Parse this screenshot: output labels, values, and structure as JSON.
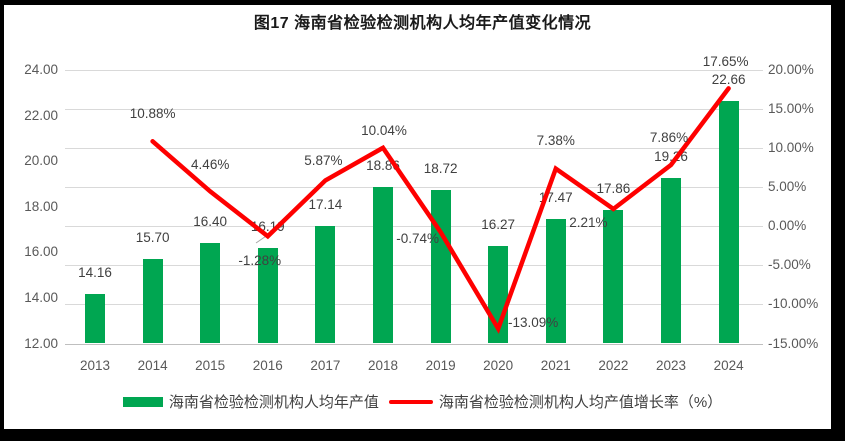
{
  "title": "图17  海南省检验检测机构人均年产值变化情况",
  "chart_data": {
    "type": "combo-bar-line",
    "title": "图17  海南省检验检测机构人均年产值变化情况",
    "categories": [
      "2013",
      "2014",
      "2015",
      "2016",
      "2017",
      "2018",
      "2019",
      "2020",
      "2021",
      "2022",
      "2023",
      "2024"
    ],
    "series": [
      {
        "name": "海南省检验检测机构人均年产值",
        "type": "bar",
        "axis": "left",
        "color": "#00A651",
        "values": [
          14.16,
          15.7,
          16.4,
          16.19,
          17.14,
          18.86,
          18.72,
          16.27,
          17.47,
          17.86,
          19.26,
          22.66
        ],
        "labels": [
          "14.16",
          "15.70",
          "16.40",
          "16.19",
          "17.14",
          "18.86",
          "18.72",
          "16.27",
          "17.47",
          "17.86",
          "19.26",
          "22.66"
        ]
      },
      {
        "name": "海南省检验检测机构人均产值增长率（%）",
        "type": "line",
        "axis": "right",
        "color": "#FE0000",
        "values": [
          null,
          10.88,
          4.46,
          -1.28,
          5.87,
          10.04,
          -0.74,
          -13.09,
          7.38,
          2.21,
          7.86,
          17.65
        ],
        "labels": [
          null,
          "10.88%",
          "4.46%",
          "-1.28%",
          "5.87%",
          "10.04%",
          "-0.74%",
          "-13.09%",
          "7.38%",
          "2.21%",
          "7.86%",
          "17.65%"
        ]
      }
    ],
    "left_axis": {
      "min": 12,
      "max": 24,
      "tick_labels": [
        "24.00",
        "22.00",
        "20.00",
        "18.00",
        "16.00",
        "14.00",
        "12.00"
      ]
    },
    "right_axis": {
      "min": -15,
      "max": 20,
      "tick_labels": [
        "20.00%",
        "15.00%",
        "10.00%",
        "5.00%",
        "0.00%",
        "-5.00%",
        "-10.00%",
        "-15.00%"
      ]
    },
    "grid": true,
    "legend_position": "bottom"
  },
  "legend": {
    "items": [
      {
        "label": "海南省检验检测机构人均年产值",
        "swatch": "bar",
        "color": "#00A651"
      },
      {
        "label": "海南省检验检测机构人均产值增长率（%）",
        "swatch": "line",
        "color": "#FE0000"
      }
    ]
  },
  "colors": {
    "bar": "#00A651",
    "line": "#FE0000",
    "gridline": "#d9d9d9",
    "axis_line": "#bfbfbf",
    "axis_text": "#595959",
    "data_label_text": "#404040",
    "title_text": "#1a1a1a",
    "frame": "#000000",
    "background": "#ffffff"
  }
}
